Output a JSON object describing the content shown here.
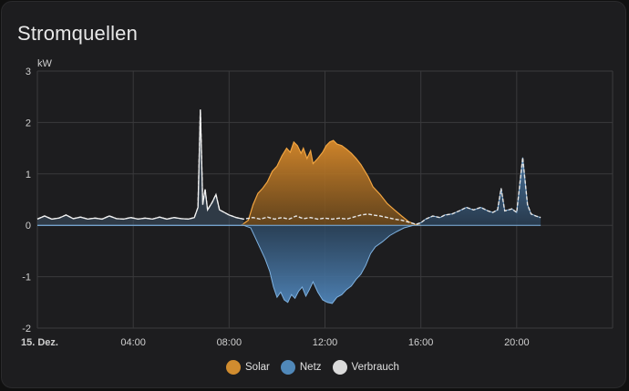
{
  "card": {
    "title": "Stromquellen"
  },
  "legend": [
    {
      "label": "Solar",
      "color": "#f0a032"
    },
    {
      "label": "Netz",
      "color": "#5a9bd5"
    },
    {
      "label": "Verbrauch",
      "color": "#e6e6e6"
    }
  ],
  "chart_data": {
    "type": "area",
    "ylabel": "kW",
    "ylim": [
      -2,
      3
    ],
    "yticks": [
      3,
      2,
      1,
      0,
      -1,
      -2
    ],
    "xlim_hours": [
      0,
      24
    ],
    "xticks": [
      {
        "hour": 0,
        "label": "15. Dez.",
        "bold": true
      },
      {
        "hour": 4,
        "label": "04:00"
      },
      {
        "hour": 8,
        "label": "08:00"
      },
      {
        "hour": 12,
        "label": "12:00"
      },
      {
        "hour": 16,
        "label": "16:00"
      },
      {
        "hour": 20,
        "label": "20:00"
      }
    ],
    "grid": true,
    "legend_position": "bottom",
    "series": [
      {
        "name": "Solar",
        "color": "#f0a032",
        "points": [
          [
            8.5,
            0
          ],
          [
            8.8,
            0.1
          ],
          [
            9.0,
            0.4
          ],
          [
            9.2,
            0.62
          ],
          [
            9.4,
            0.72
          ],
          [
            9.6,
            0.85
          ],
          [
            9.8,
            1.05
          ],
          [
            10.0,
            1.15
          ],
          [
            10.2,
            1.35
          ],
          [
            10.4,
            1.5
          ],
          [
            10.55,
            1.42
          ],
          [
            10.7,
            1.62
          ],
          [
            10.85,
            1.55
          ],
          [
            11.0,
            1.4
          ],
          [
            11.1,
            1.5
          ],
          [
            11.25,
            1.3
          ],
          [
            11.4,
            1.45
          ],
          [
            11.5,
            1.2
          ],
          [
            11.7,
            1.3
          ],
          [
            11.9,
            1.42
          ],
          [
            12.05,
            1.55
          ],
          [
            12.2,
            1.62
          ],
          [
            12.35,
            1.65
          ],
          [
            12.5,
            1.58
          ],
          [
            12.7,
            1.55
          ],
          [
            12.9,
            1.48
          ],
          [
            13.1,
            1.4
          ],
          [
            13.3,
            1.3
          ],
          [
            13.5,
            1.18
          ],
          [
            13.8,
            0.95
          ],
          [
            14.0,
            0.75
          ],
          [
            14.3,
            0.6
          ],
          [
            14.6,
            0.42
          ],
          [
            14.9,
            0.3
          ],
          [
            15.2,
            0.18
          ],
          [
            15.5,
            0.07
          ],
          [
            15.8,
            0.01
          ],
          [
            16.0,
            0
          ]
        ]
      },
      {
        "name": "Netz",
        "color": "#5a9bd5",
        "points": [
          [
            0,
            0
          ],
          [
            8.6,
            0
          ],
          [
            8.9,
            -0.05
          ],
          [
            9.1,
            -0.25
          ],
          [
            9.3,
            -0.45
          ],
          [
            9.5,
            -0.65
          ],
          [
            9.7,
            -0.9
          ],
          [
            9.85,
            -1.2
          ],
          [
            10.0,
            -1.4
          ],
          [
            10.15,
            -1.3
          ],
          [
            10.3,
            -1.45
          ],
          [
            10.45,
            -1.5
          ],
          [
            10.6,
            -1.35
          ],
          [
            10.75,
            -1.42
          ],
          [
            10.9,
            -1.28
          ],
          [
            11.05,
            -1.2
          ],
          [
            11.2,
            -1.38
          ],
          [
            11.35,
            -1.25
          ],
          [
            11.5,
            -1.1
          ],
          [
            11.7,
            -1.3
          ],
          [
            11.9,
            -1.45
          ],
          [
            12.1,
            -1.5
          ],
          [
            12.3,
            -1.52
          ],
          [
            12.5,
            -1.4
          ],
          [
            12.7,
            -1.35
          ],
          [
            12.9,
            -1.25
          ],
          [
            13.1,
            -1.18
          ],
          [
            13.3,
            -1.05
          ],
          [
            13.5,
            -0.95
          ],
          [
            13.7,
            -0.78
          ],
          [
            13.9,
            -0.55
          ],
          [
            14.1,
            -0.42
          ],
          [
            14.4,
            -0.32
          ],
          [
            14.7,
            -0.2
          ],
          [
            15.0,
            -0.12
          ],
          [
            15.3,
            -0.05
          ],
          [
            15.7,
            0
          ],
          [
            16.0,
            0.05
          ],
          [
            16.2,
            0.12
          ],
          [
            16.5,
            0.18
          ],
          [
            16.8,
            0.15
          ],
          [
            17.0,
            0.2
          ],
          [
            17.3,
            0.22
          ],
          [
            17.6,
            0.28
          ],
          [
            17.9,
            0.35
          ],
          [
            18.2,
            0.3
          ],
          [
            18.5,
            0.35
          ],
          [
            18.8,
            0.28
          ],
          [
            19.0,
            0.25
          ],
          [
            19.2,
            0.3
          ],
          [
            19.35,
            0.72
          ],
          [
            19.5,
            0.28
          ],
          [
            19.8,
            0.32
          ],
          [
            20.0,
            0.25
          ],
          [
            20.25,
            1.32
          ],
          [
            20.45,
            0.4
          ],
          [
            20.6,
            0.22
          ],
          [
            20.8,
            0.18
          ],
          [
            21.0,
            0.15
          ]
        ]
      },
      {
        "name": "Verbrauch",
        "color": "#e6e6e6",
        "dashed": true,
        "points": [
          [
            0,
            0.12
          ],
          [
            0.3,
            0.18
          ],
          [
            0.6,
            0.12
          ],
          [
            0.9,
            0.14
          ],
          [
            1.2,
            0.2
          ],
          [
            1.5,
            0.13
          ],
          [
            1.8,
            0.16
          ],
          [
            2.1,
            0.12
          ],
          [
            2.4,
            0.14
          ],
          [
            2.7,
            0.12
          ],
          [
            3.0,
            0.18
          ],
          [
            3.3,
            0.13
          ],
          [
            3.6,
            0.12
          ],
          [
            3.9,
            0.15
          ],
          [
            4.2,
            0.12
          ],
          [
            4.5,
            0.14
          ],
          [
            4.8,
            0.12
          ],
          [
            5.1,
            0.16
          ],
          [
            5.4,
            0.12
          ],
          [
            5.7,
            0.15
          ],
          [
            6.0,
            0.13
          ],
          [
            6.3,
            0.12
          ],
          [
            6.55,
            0.15
          ],
          [
            6.7,
            0.35
          ],
          [
            6.8,
            2.25
          ],
          [
            6.9,
            0.4
          ],
          [
            7.0,
            0.7
          ],
          [
            7.1,
            0.3
          ],
          [
            7.3,
            0.45
          ],
          [
            7.45,
            0.6
          ],
          [
            7.6,
            0.3
          ],
          [
            7.8,
            0.25
          ],
          [
            8.0,
            0.2
          ],
          [
            8.3,
            0.15
          ],
          [
            8.6,
            0.12
          ],
          [
            9.0,
            0.15
          ],
          [
            9.3,
            0.12
          ],
          [
            9.6,
            0.16
          ],
          [
            9.9,
            0.12
          ],
          [
            10.2,
            0.15
          ],
          [
            10.5,
            0.12
          ],
          [
            10.8,
            0.18
          ],
          [
            11.1,
            0.13
          ],
          [
            11.4,
            0.15
          ],
          [
            11.7,
            0.12
          ],
          [
            12.0,
            0.14
          ],
          [
            12.3,
            0.12
          ],
          [
            12.6,
            0.14
          ],
          [
            12.9,
            0.12
          ],
          [
            13.2,
            0.16
          ],
          [
            13.5,
            0.2
          ],
          [
            13.8,
            0.22
          ],
          [
            14.0,
            0.2
          ],
          [
            14.3,
            0.18
          ],
          [
            14.6,
            0.15
          ],
          [
            14.9,
            0.12
          ],
          [
            15.2,
            0.1
          ],
          [
            15.5,
            0.06
          ],
          [
            15.8,
            0.02
          ],
          [
            16.0,
            0.05
          ],
          [
            16.2,
            0.12
          ],
          [
            16.5,
            0.18
          ],
          [
            16.8,
            0.15
          ],
          [
            17.0,
            0.2
          ],
          [
            17.3,
            0.22
          ],
          [
            17.6,
            0.28
          ],
          [
            17.9,
            0.35
          ],
          [
            18.2,
            0.3
          ],
          [
            18.5,
            0.35
          ],
          [
            18.8,
            0.28
          ],
          [
            19.0,
            0.25
          ],
          [
            19.2,
            0.3
          ],
          [
            19.35,
            0.72
          ],
          [
            19.5,
            0.28
          ],
          [
            19.8,
            0.32
          ],
          [
            20.0,
            0.25
          ],
          [
            20.25,
            1.32
          ],
          [
            20.45,
            0.4
          ],
          [
            20.6,
            0.22
          ],
          [
            20.8,
            0.18
          ],
          [
            21.0,
            0.15
          ]
        ]
      }
    ]
  }
}
